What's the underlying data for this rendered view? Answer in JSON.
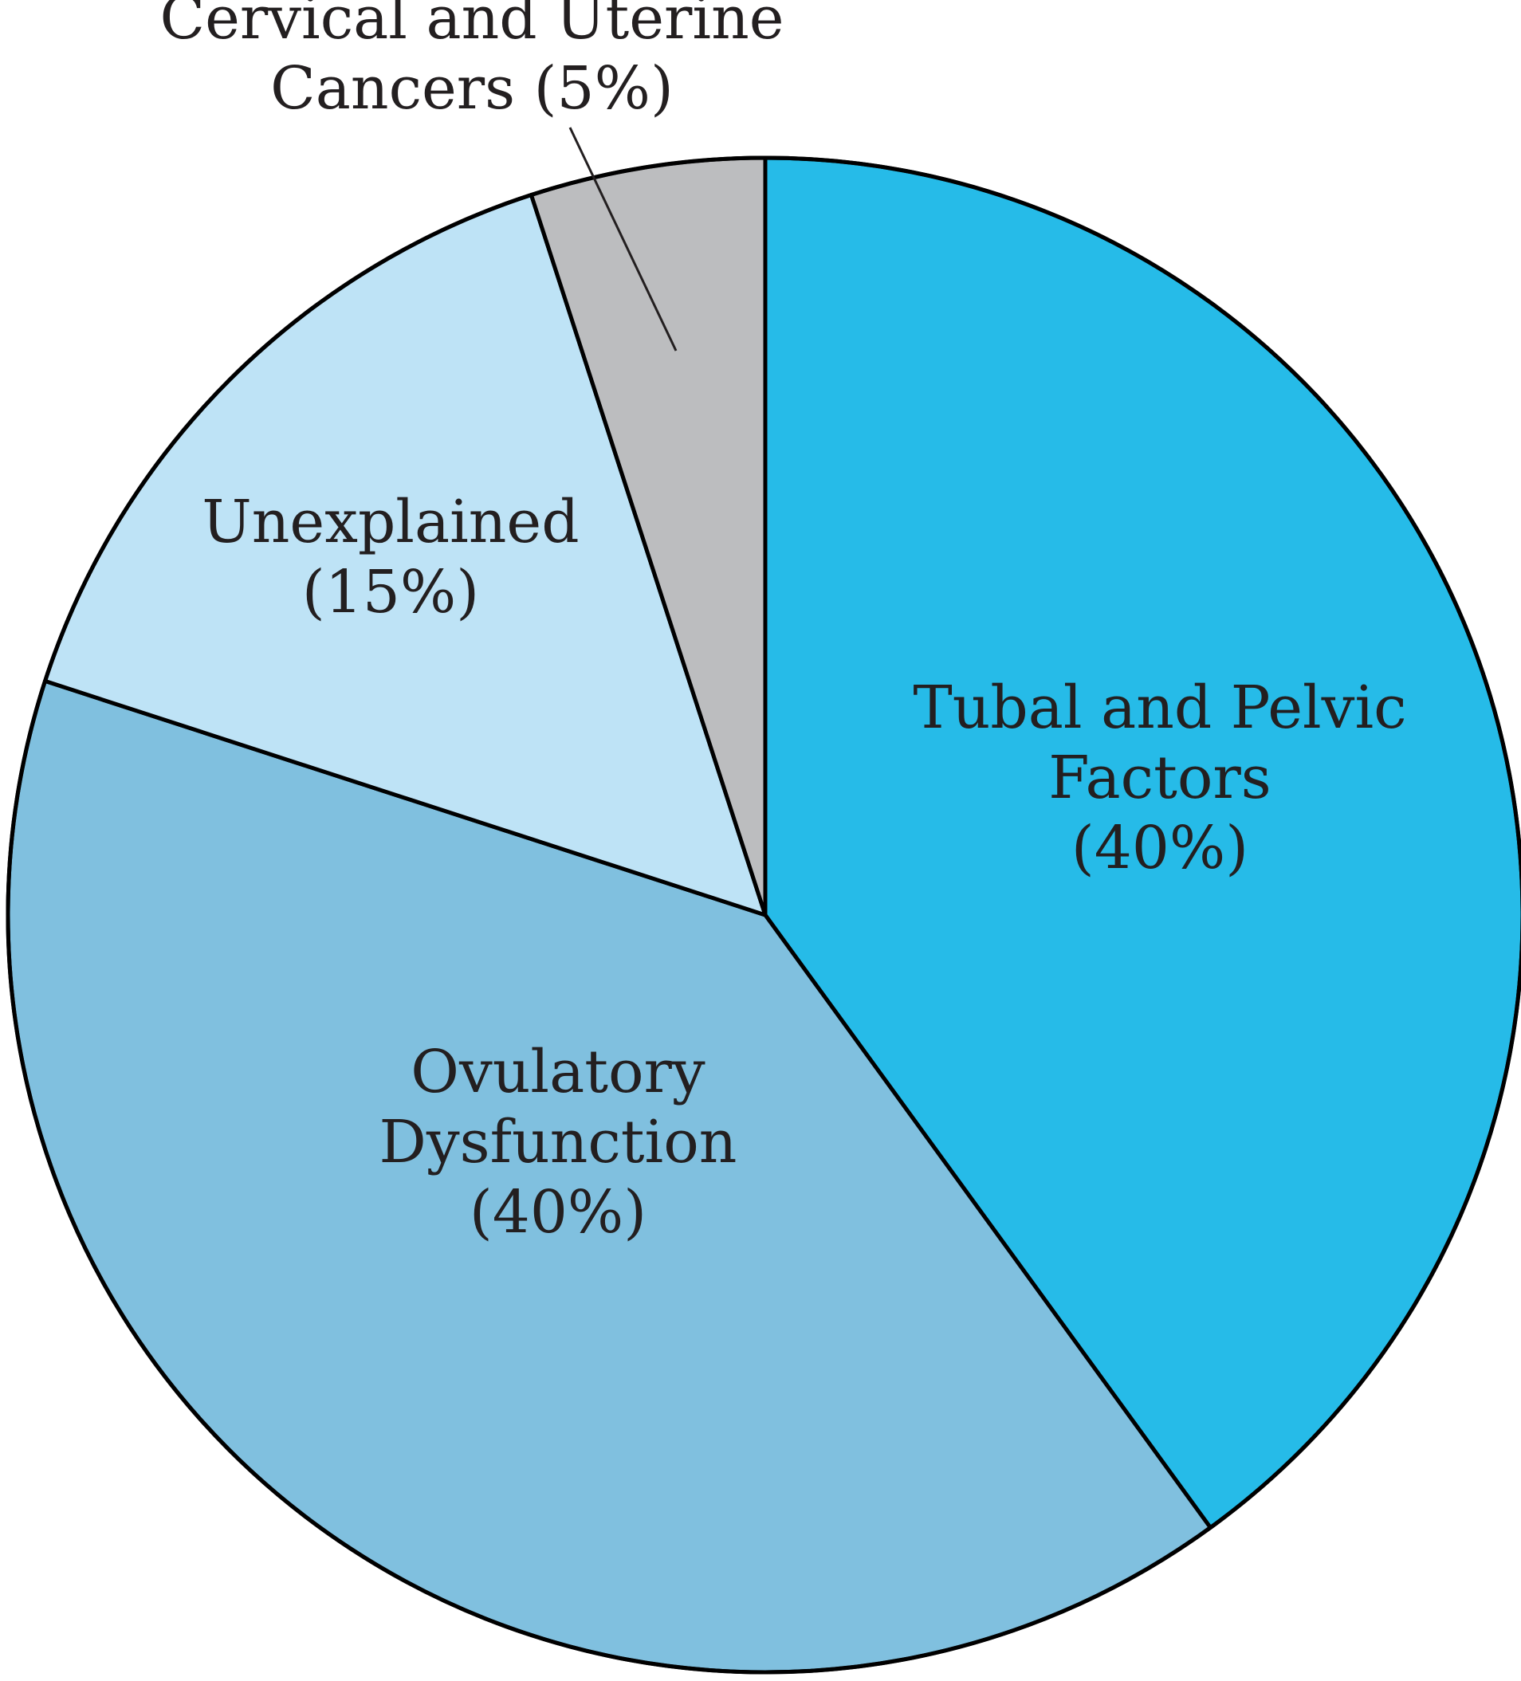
{
  "chart_data": {
    "type": "pie",
    "title": "",
    "slices": [
      {
        "label_lines": [
          "Tubal and Pelvic",
          "Factors",
          "(40%)"
        ],
        "value": 40,
        "color": "#26bbe8"
      },
      {
        "label_lines": [
          "Ovulatory",
          "Dysfunction",
          "(40%)"
        ],
        "value": 40,
        "color": "#80c0df"
      },
      {
        "label_lines": [
          "Unexplained",
          "(15%)"
        ],
        "value": 15,
        "color": "#bee3f6"
      },
      {
        "label_lines": [
          "Cervical and Uterine",
          "Cancers (5%)"
        ],
        "value": 5,
        "color": "#bcbdbf"
      }
    ],
    "start_angle_deg": 0,
    "direction": "clockwise",
    "legend": "none"
  }
}
